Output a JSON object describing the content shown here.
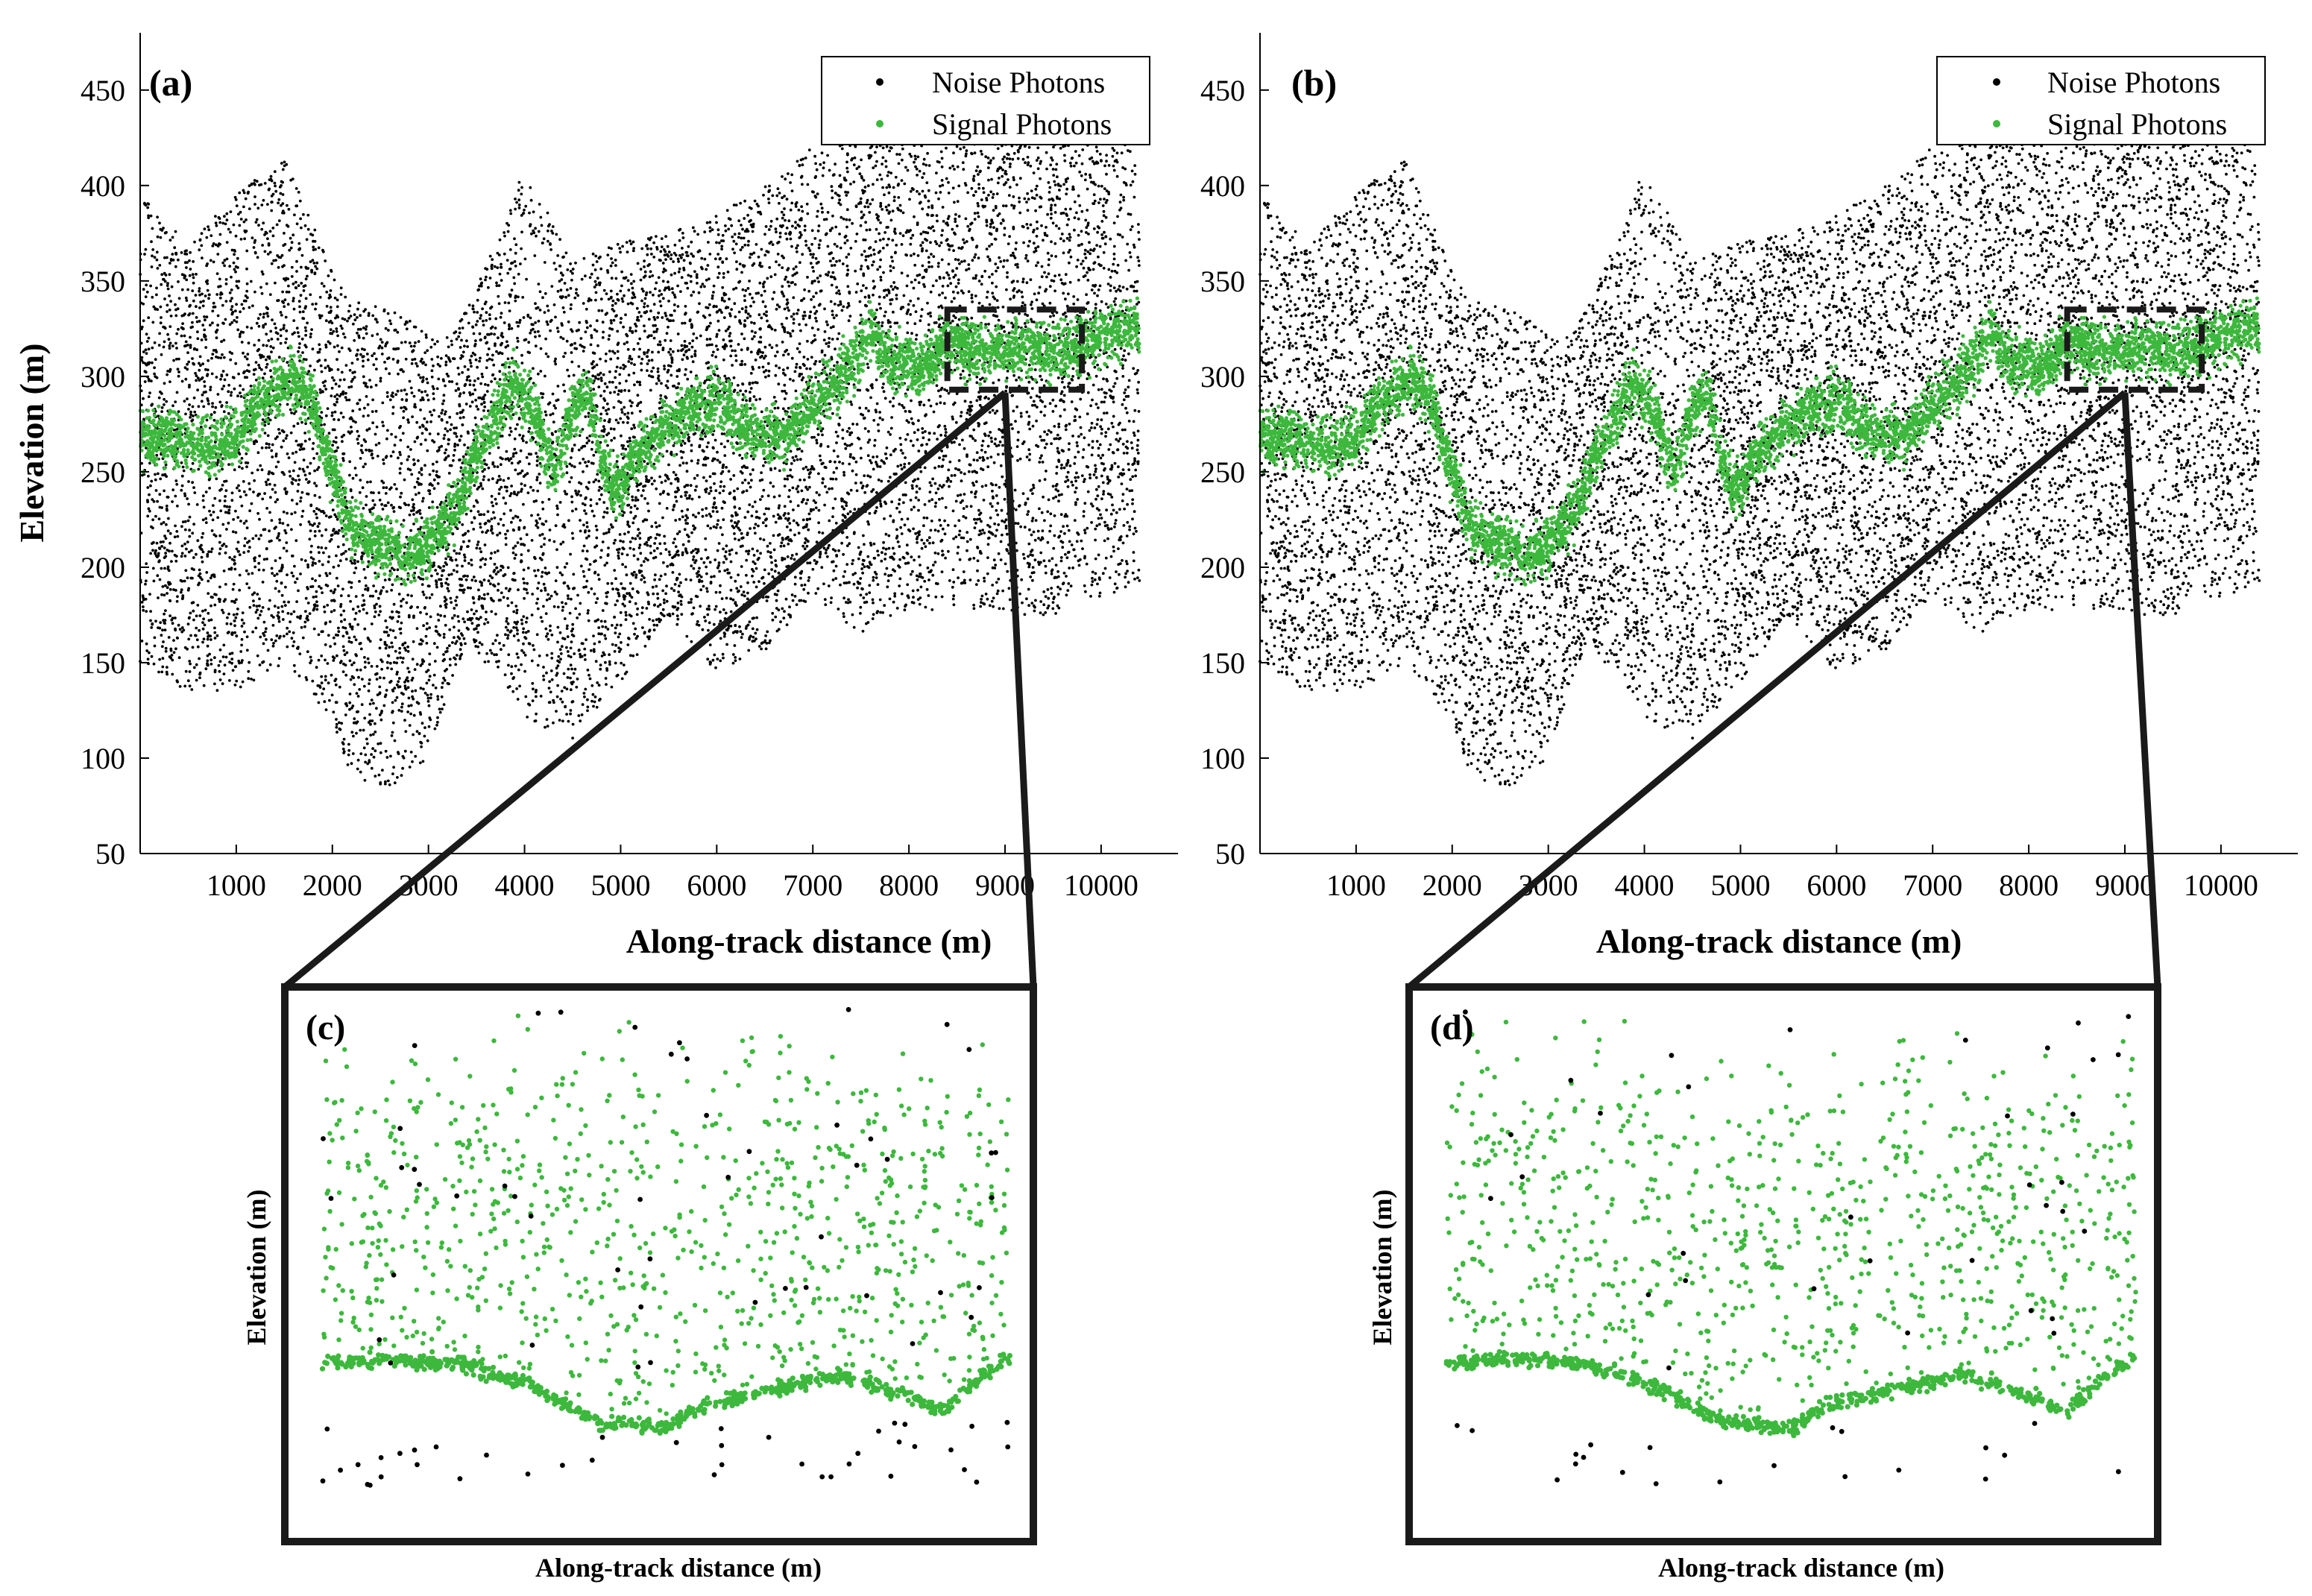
{
  "colors": {
    "noise": "#000000",
    "signal": "#3db83d",
    "axis": "#000000",
    "frame": "#1a1a1a"
  },
  "chart_data": [
    {
      "id": "a",
      "type": "scatter",
      "panel_label": "(a)",
      "xlabel": "Along-track distance (m)",
      "ylabel": "Elevation (m)",
      "xlim": [
        0,
        10800
      ],
      "ylim": [
        50,
        480
      ],
      "xticks": [
        1000,
        2000,
        3000,
        4000,
        5000,
        6000,
        7000,
        8000,
        9000,
        10000
      ],
      "xtick_labels": [
        "1000",
        "2000",
        "3000",
        "4000",
        "5000",
        "6000",
        "7000",
        "8000",
        "9000",
        "10000"
      ],
      "yticks": [
        50,
        100,
        150,
        200,
        250,
        300,
        350,
        400,
        450
      ],
      "ytick_labels": [
        "50",
        "100",
        "150",
        "200",
        "250",
        "300",
        "350",
        "400",
        "450"
      ],
      "legend": {
        "position": "top-right",
        "entries": [
          "Noise Photons",
          "Signal Photons"
        ]
      },
      "zoom_box": {
        "x": [
          8400,
          9800
        ],
        "y": [
          293,
          335
        ]
      },
      "series": [
        {
          "name": "Noise Photons",
          "color": "#000000",
          "lower_envelope": [
            [
              0,
              150
            ],
            [
              500,
              135
            ],
            [
              1000,
              135
            ],
            [
              1500,
              150
            ],
            [
              2000,
              120
            ],
            [
              2200,
              90
            ],
            [
              2600,
              85
            ],
            [
              3000,
              100
            ],
            [
              3300,
              150
            ],
            [
              3700,
              150
            ],
            [
              4000,
              120
            ],
            [
              4500,
              110
            ],
            [
              5000,
              140
            ],
            [
              5500,
              175
            ],
            [
              6000,
              145
            ],
            [
              6500,
              155
            ],
            [
              7000,
              185
            ],
            [
              7500,
              165
            ],
            [
              8000,
              175
            ],
            [
              8500,
              180
            ],
            [
              9000,
              175
            ],
            [
              9500,
              175
            ],
            [
              10000,
              185
            ],
            [
              10400,
              190
            ]
          ],
          "upper_envelope": [
            [
              0,
              395
            ],
            [
              500,
              370
            ],
            [
              1000,
              395
            ],
            [
              1500,
              415
            ],
            [
              2000,
              355
            ],
            [
              2200,
              340
            ],
            [
              2600,
              335
            ],
            [
              3000,
              325
            ],
            [
              3300,
              330
            ],
            [
              3700,
              370
            ],
            [
              4000,
              410
            ],
            [
              4500,
              360
            ],
            [
              5000,
              370
            ],
            [
              5500,
              375
            ],
            [
              6000,
              385
            ],
            [
              6500,
              400
            ],
            [
              7000,
              420
            ],
            [
              7500,
              430
            ],
            [
              8000,
              440
            ],
            [
              8500,
              440
            ],
            [
              9000,
              440
            ],
            [
              9500,
              445
            ],
            [
              10000,
              445
            ],
            [
              10400,
              440
            ]
          ]
        },
        {
          "name": "Signal Photons",
          "color": "#3db83d",
          "ground": [
            [
              0,
              270
            ],
            [
              300,
              268
            ],
            [
              700,
              262
            ],
            [
              1000,
              268
            ],
            [
              1300,
              290
            ],
            [
              1600,
              300
            ],
            [
              1800,
              285
            ],
            [
              2000,
              250
            ],
            [
              2200,
              222
            ],
            [
              2500,
              212
            ],
            [
              2800,
              205
            ],
            [
              3000,
              212
            ],
            [
              3300,
              232
            ],
            [
              3600,
              270
            ],
            [
              3900,
              298
            ],
            [
              4100,
              280
            ],
            [
              4300,
              250
            ],
            [
              4500,
              282
            ],
            [
              4650,
              292
            ],
            [
              4800,
              258
            ],
            [
              4950,
              240
            ],
            [
              5200,
              262
            ],
            [
              5600,
              278
            ],
            [
              6000,
              288
            ],
            [
              6300,
              272
            ],
            [
              6700,
              268
            ],
            [
              7000,
              285
            ],
            [
              7300,
              300
            ],
            [
              7600,
              322
            ],
            [
              7800,
              308
            ],
            [
              8100,
              303
            ],
            [
              8400,
              318
            ],
            [
              8800,
              313
            ],
            [
              9200,
              316
            ],
            [
              9600,
              313
            ],
            [
              10000,
              320
            ],
            [
              10400,
              328
            ]
          ],
          "band_width_m": 22
        }
      ]
    },
    {
      "id": "b",
      "type": "scatter",
      "panel_label": "(b)",
      "xlabel": "Along-track distance (m)",
      "ylabel": "",
      "xlim": [
        0,
        10800
      ],
      "ylim": [
        50,
        480
      ],
      "xticks": [
        1000,
        2000,
        3000,
        4000,
        5000,
        6000,
        7000,
        8000,
        9000,
        10000
      ],
      "xtick_labels": [
        "1000",
        "2000",
        "3000",
        "4000",
        "5000",
        "6000",
        "7000",
        "8000",
        "9000",
        "10000"
      ],
      "yticks": [
        50,
        100,
        150,
        200,
        250,
        300,
        350,
        400,
        450
      ],
      "ytick_labels": [
        "50",
        "100",
        "150",
        "200",
        "250",
        "300",
        "350",
        "400",
        "450"
      ],
      "legend": {
        "position": "top-right",
        "entries": [
          "Noise Photons",
          "Signal Photons"
        ]
      },
      "zoom_box": {
        "x": [
          8400,
          9800
        ],
        "y": [
          293,
          335
        ]
      },
      "series": [
        {
          "name": "Noise Photons",
          "color": "#000000",
          "same_as": "a"
        },
        {
          "name": "Signal Photons",
          "color": "#3db83d",
          "same_as": "a"
        }
      ]
    },
    {
      "id": "c",
      "type": "scatter",
      "panel_label": "(c)",
      "xlabel": "Along-track distance (m)",
      "ylabel": "Elevation (m)",
      "axes_ticks": "none",
      "series": [
        {
          "name": "Noise Photons",
          "color": "#000000",
          "count": 90
        },
        {
          "name": "Signal Photons",
          "color": "#3db83d",
          "ground_profile": [
            [
              0.0,
              0.31
            ],
            [
              0.1,
              0.32
            ],
            [
              0.2,
              0.31
            ],
            [
              0.3,
              0.27
            ],
            [
              0.4,
              0.2
            ],
            [
              0.5,
              0.19
            ],
            [
              0.55,
              0.23
            ],
            [
              0.65,
              0.26
            ],
            [
              0.75,
              0.29
            ],
            [
              0.85,
              0.25
            ],
            [
              0.9,
              0.22
            ],
            [
              0.95,
              0.28
            ],
            [
              1.0,
              0.33
            ]
          ],
          "canopy_count": 900
        }
      ]
    },
    {
      "id": "d",
      "type": "scatter",
      "panel_label": "(d)",
      "xlabel": "Along-track distance (m)",
      "ylabel": "Elevation (m)",
      "axes_ticks": "none",
      "series": [
        {
          "name": "Noise Photons",
          "color": "#000000",
          "count": 55
        },
        {
          "name": "Signal Photons",
          "color": "#3db83d",
          "same_as": "c"
        }
      ]
    }
  ]
}
